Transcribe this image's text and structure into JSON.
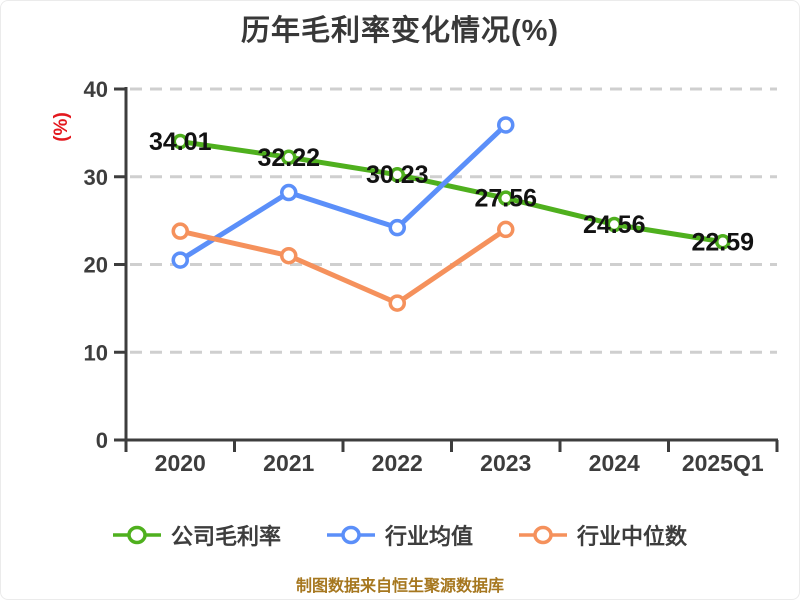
{
  "title": "历年毛利率变化情况(%)",
  "footer": "制图数据来自恒生聚源数据库",
  "colors": {
    "title_text": "#383838",
    "axis_and_ticks": "#3d3d3d",
    "gridline": "#cfcfcf",
    "y_axis_label_red": "#e3181e",
    "value_label_black": "#121212",
    "legend_text": "#3d3d3d",
    "footer_gold": "#a6771f",
    "series_green": "#4fb01e",
    "series_blue": "#5b8ff9",
    "series_orange": "#f5915c"
  },
  "chart_data": {
    "type": "line",
    "title": "历年毛利率变化情况(%)",
    "xlabel": "",
    "ylabel": "(%)",
    "categories": [
      "2020",
      "2021",
      "2022",
      "2023",
      "2024",
      "2025Q1"
    ],
    "ylim": [
      0,
      40
    ],
    "yticks": [
      0,
      10,
      20,
      30,
      40
    ],
    "grid": "horizontal-dashed",
    "legend_position": "bottom",
    "marker_style": "white-filled-circle-with-colored-ring",
    "series": [
      {
        "name": "公司毛利率",
        "color": "#4fb01e",
        "values": [
          34.01,
          32.22,
          30.23,
          27.56,
          24.56,
          22.59
        ],
        "point_labels": [
          "34.01",
          "32.22",
          "30.23",
          "27.56",
          "24.56",
          "22.59"
        ],
        "labels_shown": true
      },
      {
        "name": "行业均值",
        "color": "#5b8ff9",
        "values": [
          20.5,
          28.2,
          24.2,
          35.9,
          null,
          null
        ],
        "labels_shown": false
      },
      {
        "name": "行业中位数",
        "color": "#f5915c",
        "values": [
          23.8,
          21.0,
          15.6,
          24.0,
          null,
          null
        ],
        "labels_shown": false
      }
    ]
  }
}
